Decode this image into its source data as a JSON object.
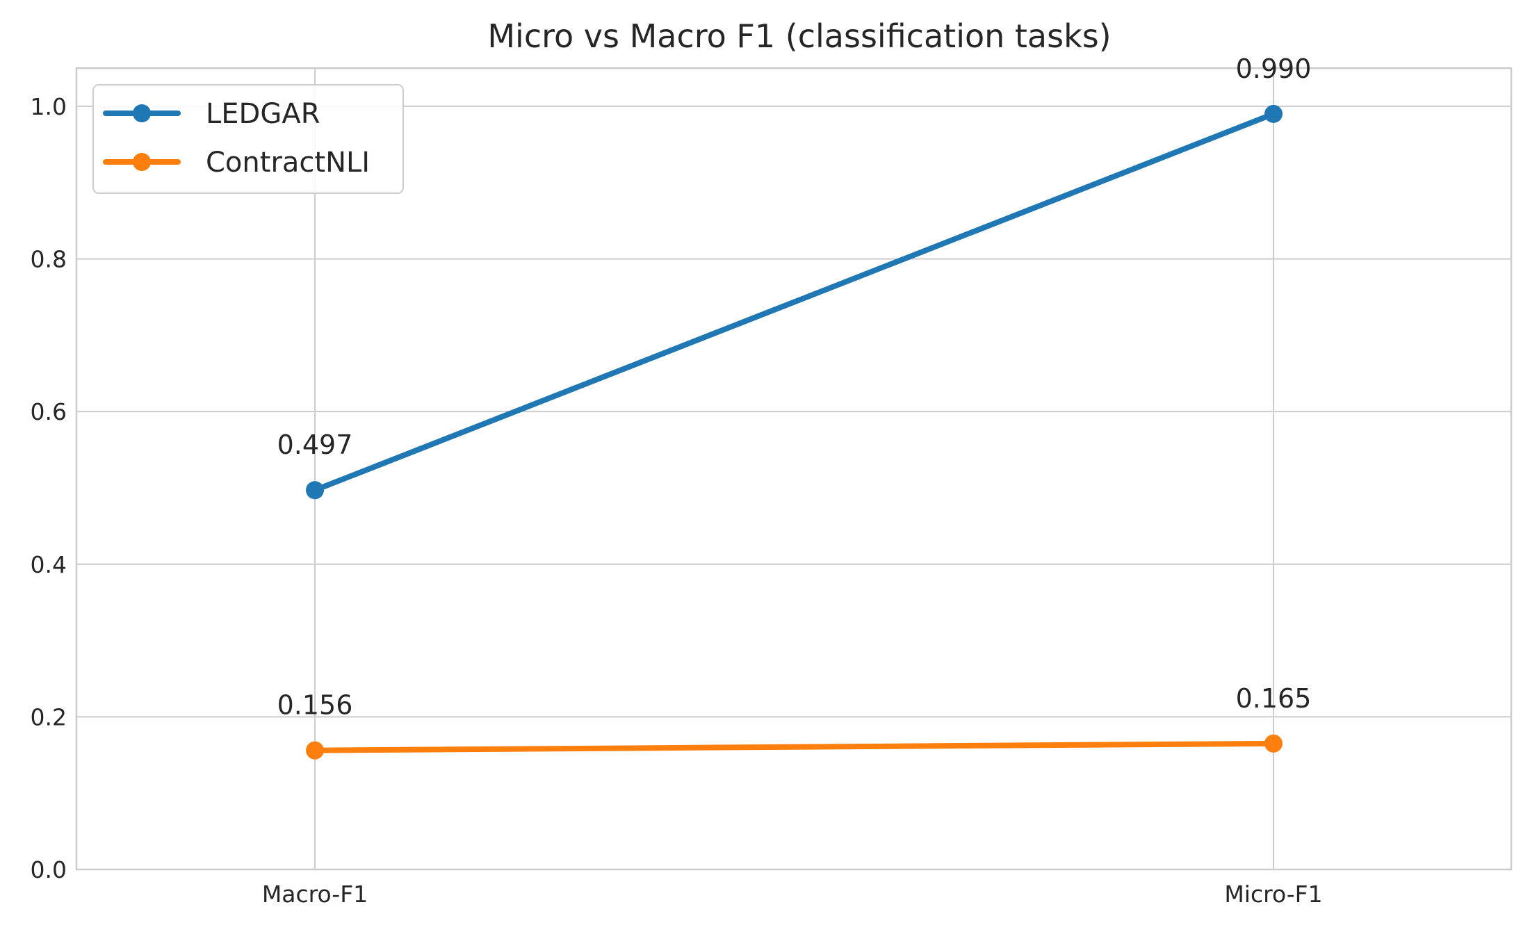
{
  "chart_data": {
    "type": "line",
    "title": "Micro vs Macro F1 (classification tasks)",
    "xlabel": "",
    "ylabel": "",
    "categories": [
      "Macro-F1",
      "Micro-F1"
    ],
    "ylim": [
      0.0,
      1.05
    ],
    "yticks": [
      0.0,
      0.2,
      0.4,
      0.6,
      0.8,
      1.0
    ],
    "ytick_labels": [
      "0.0",
      "0.2",
      "0.4",
      "0.6",
      "0.8",
      "1.0"
    ],
    "grid": true,
    "legend_position": "top-left",
    "series": [
      {
        "name": "LEDGAR",
        "color": "#1f77b4",
        "values": [
          0.497,
          0.99
        ],
        "labels": [
          "0.497",
          "0.990"
        ]
      },
      {
        "name": "ContractNLI",
        "color": "#ff7f0e",
        "values": [
          0.156,
          0.165
        ],
        "labels": [
          "0.156",
          "0.165"
        ]
      }
    ]
  },
  "colors": {
    "grid": "#cccccc",
    "axes": "#cccccc",
    "text": "#262626"
  }
}
